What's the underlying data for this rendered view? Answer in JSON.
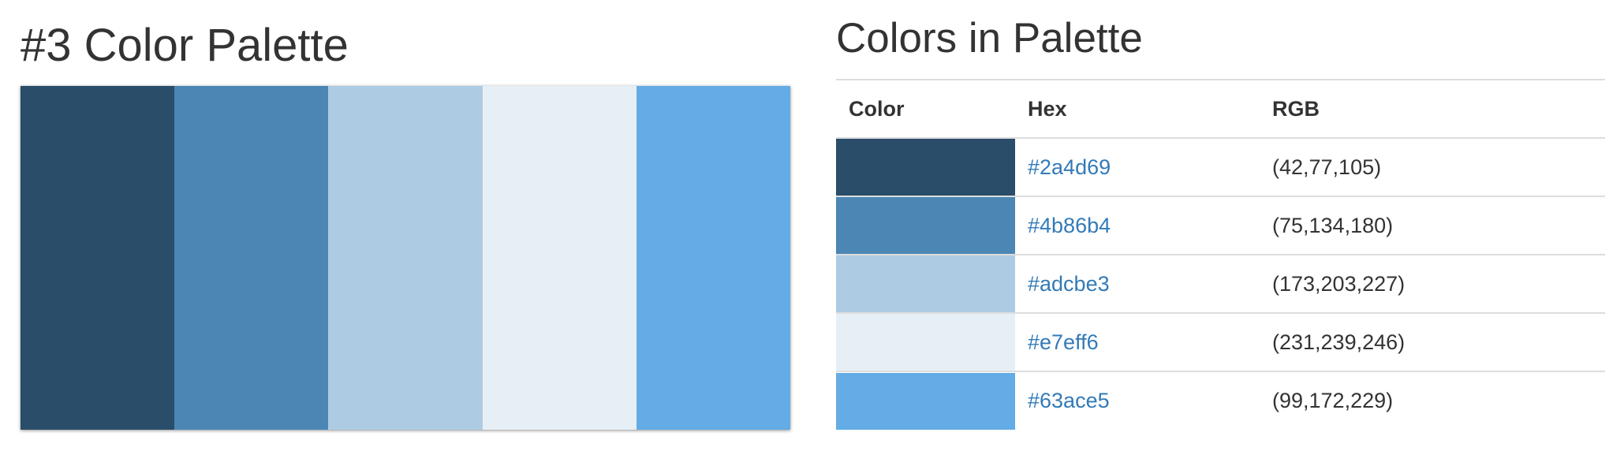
{
  "palette": {
    "title": "#3 Color Palette",
    "swatches": [
      {
        "hex": "#2a4d69"
      },
      {
        "hex": "#4b86b4"
      },
      {
        "hex": "#adcbe3"
      },
      {
        "hex": "#e7eff6"
      },
      {
        "hex": "#63ace5"
      }
    ]
  },
  "colors": {
    "title": "Colors in Palette",
    "headers": {
      "color": "Color",
      "hex": "Hex",
      "rgb": "RGB"
    },
    "rows": [
      {
        "swatch": "#2a4d69",
        "hex": "#2a4d69",
        "rgb": "(42,77,105)"
      },
      {
        "swatch": "#4b86b4",
        "hex": "#4b86b4",
        "rgb": "(75,134,180)"
      },
      {
        "swatch": "#adcbe3",
        "hex": "#adcbe3",
        "rgb": "(173,203,227)"
      },
      {
        "swatch": "#e7eff6",
        "hex": "#e7eff6",
        "rgb": "(231,239,246)"
      },
      {
        "swatch": "#63ace5",
        "hex": "#63ace5",
        "rgb": "(99,172,229)"
      }
    ]
  },
  "theme": {
    "text": "#333333",
    "link": "#337ab7",
    "divider": "#dddddd"
  }
}
